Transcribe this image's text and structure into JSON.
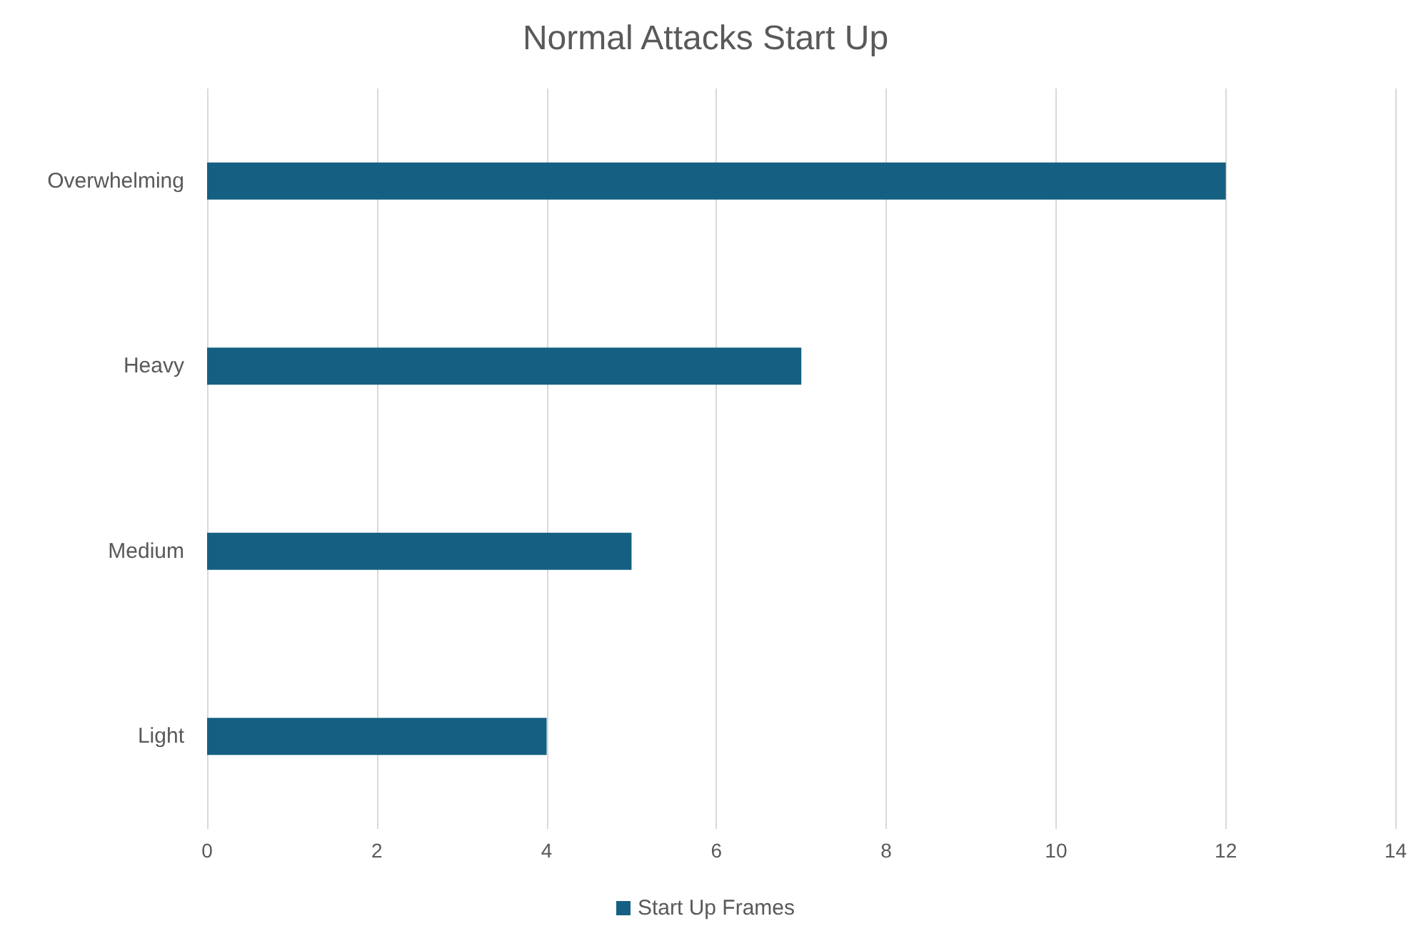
{
  "chart_data": {
    "type": "bar",
    "title": "Normal Attacks Start Up",
    "orientation": "horizontal",
    "categories": [
      "Overwhelming",
      "Heavy",
      "Medium",
      "Light"
    ],
    "series": [
      {
        "name": "Start Up Frames",
        "color": "#156082",
        "values": [
          12,
          7,
          5,
          4
        ]
      }
    ],
    "xlim": [
      0,
      14
    ],
    "xticks": [
      0,
      2,
      4,
      6,
      8,
      10,
      12,
      14
    ],
    "grid": "x",
    "legend": "bottom"
  }
}
